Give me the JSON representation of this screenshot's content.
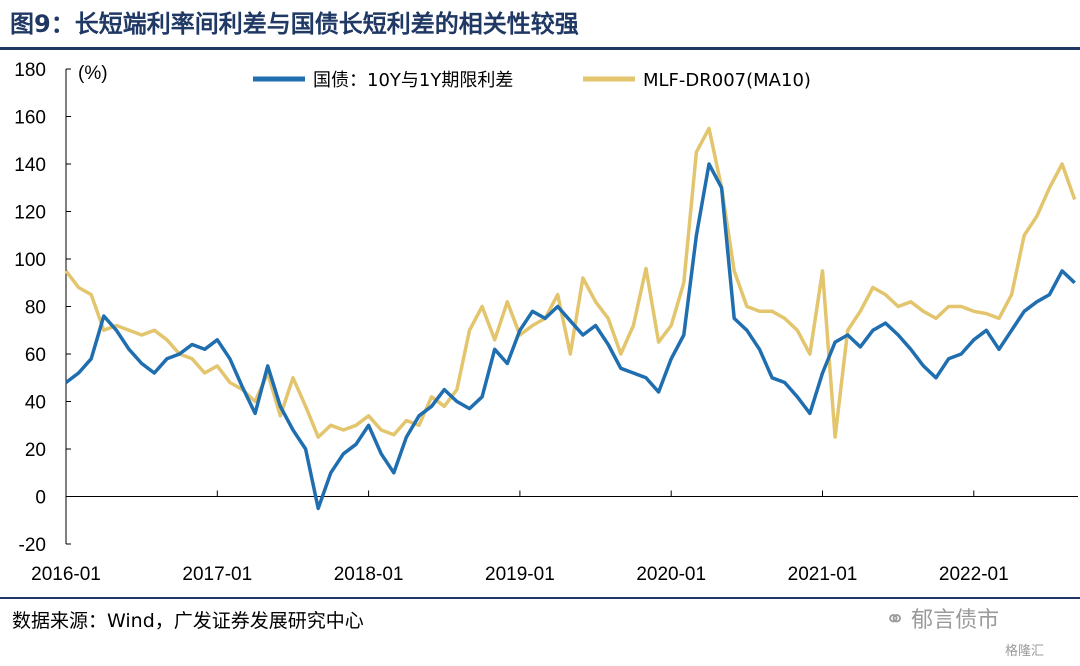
{
  "header": {
    "title": "图9：长短端利率间利差与国债长短利差的相关性较强"
  },
  "footer": {
    "source": "数据来源：Wind，广发证券发展研究中心",
    "watermark": "郁言债市",
    "brand": "格隆汇"
  },
  "chart_data": {
    "type": "line",
    "title": "",
    "xlabel": "",
    "ylabel": "(%)",
    "ylim": [
      -20,
      180
    ],
    "yticks": [
      -20,
      0,
      20,
      40,
      60,
      80,
      100,
      120,
      140,
      160,
      180
    ],
    "xlim": [
      "2016-01",
      "2022-09"
    ],
    "xticks": [
      "2016-01",
      "2017-01",
      "2018-01",
      "2019-01",
      "2020-01",
      "2021-01",
      "2022-01"
    ],
    "legend_position": "top",
    "grid": false,
    "colors": {
      "series1": "#1f6eb0",
      "series2": "#e3c56e",
      "text": "#000000",
      "title": "#1f3864"
    },
    "series": [
      {
        "name": "国债：10Y与1Y期限利差",
        "x": [
          "2016-01",
          "2016-02",
          "2016-03",
          "2016-04",
          "2016-05",
          "2016-06",
          "2016-07",
          "2016-08",
          "2016-09",
          "2016-10",
          "2016-11",
          "2016-12",
          "2017-01",
          "2017-02",
          "2017-03",
          "2017-04",
          "2017-05",
          "2017-06",
          "2017-07",
          "2017-08",
          "2017-09",
          "2017-10",
          "2017-11",
          "2017-12",
          "2018-01",
          "2018-02",
          "2018-03",
          "2018-04",
          "2018-05",
          "2018-06",
          "2018-07",
          "2018-08",
          "2018-09",
          "2018-10",
          "2018-11",
          "2018-12",
          "2019-01",
          "2019-02",
          "2019-03",
          "2019-04",
          "2019-05",
          "2019-06",
          "2019-07",
          "2019-08",
          "2019-09",
          "2019-10",
          "2019-11",
          "2019-12",
          "2020-01",
          "2020-02",
          "2020-03",
          "2020-04",
          "2020-05",
          "2020-06",
          "2020-07",
          "2020-08",
          "2020-09",
          "2020-10",
          "2020-11",
          "2020-12",
          "2021-01",
          "2021-02",
          "2021-03",
          "2021-04",
          "2021-05",
          "2021-06",
          "2021-07",
          "2021-08",
          "2021-09",
          "2021-10",
          "2021-11",
          "2021-12",
          "2022-01",
          "2022-02",
          "2022-03",
          "2022-04",
          "2022-05",
          "2022-06",
          "2022-07",
          "2022-08",
          "2022-09"
        ],
        "values": [
          48,
          52,
          58,
          76,
          70,
          62,
          56,
          52,
          58,
          60,
          64,
          62,
          66,
          58,
          46,
          35,
          55,
          38,
          28,
          20,
          -5,
          10,
          18,
          22,
          30,
          18,
          10,
          25,
          34,
          38,
          45,
          40,
          37,
          42,
          62,
          56,
          70,
          78,
          75,
          80,
          74,
          68,
          72,
          64,
          54,
          52,
          50,
          44,
          58,
          68,
          110,
          140,
          130,
          75,
          70,
          62,
          50,
          48,
          42,
          35,
          52,
          65,
          68,
          63,
          70,
          73,
          68,
          62,
          55,
          50,
          58,
          60,
          66,
          70,
          62,
          70,
          78,
          82,
          85,
          95,
          90
        ]
      },
      {
        "name": "MLF-DR007(MA10)",
        "x": [
          "2016-01",
          "2016-02",
          "2016-03",
          "2016-04",
          "2016-05",
          "2016-06",
          "2016-07",
          "2016-08",
          "2016-09",
          "2016-10",
          "2016-11",
          "2016-12",
          "2017-01",
          "2017-02",
          "2017-03",
          "2017-04",
          "2017-05",
          "2017-06",
          "2017-07",
          "2017-08",
          "2017-09",
          "2017-10",
          "2017-11",
          "2017-12",
          "2018-01",
          "2018-02",
          "2018-03",
          "2018-04",
          "2018-05",
          "2018-06",
          "2018-07",
          "2018-08",
          "2018-09",
          "2018-10",
          "2018-11",
          "2018-12",
          "2019-01",
          "2019-02",
          "2019-03",
          "2019-04",
          "2019-05",
          "2019-06",
          "2019-07",
          "2019-08",
          "2019-09",
          "2019-10",
          "2019-11",
          "2019-12",
          "2020-01",
          "2020-02",
          "2020-03",
          "2020-04",
          "2020-05",
          "2020-06",
          "2020-07",
          "2020-08",
          "2020-09",
          "2020-10",
          "2020-11",
          "2020-12",
          "2021-01",
          "2021-02",
          "2021-03",
          "2021-04",
          "2021-05",
          "2021-06",
          "2021-07",
          "2021-08",
          "2021-09",
          "2021-10",
          "2021-11",
          "2021-12",
          "2022-01",
          "2022-02",
          "2022-03",
          "2022-04",
          "2022-05",
          "2022-06",
          "2022-07",
          "2022-08",
          "2022-09"
        ],
        "values": [
          95,
          88,
          85,
          70,
          72,
          70,
          68,
          70,
          66,
          60,
          58,
          52,
          55,
          48,
          45,
          40,
          52,
          34,
          50,
          38,
          25,
          30,
          28,
          30,
          34,
          28,
          26,
          32,
          30,
          42,
          38,
          45,
          70,
          80,
          66,
          82,
          68,
          72,
          75,
          85,
          60,
          92,
          82,
          75,
          60,
          72,
          96,
          65,
          72,
          90,
          145,
          155,
          130,
          95,
          80,
          78,
          78,
          75,
          70,
          60,
          95,
          25,
          70,
          78,
          88,
          85,
          80,
          82,
          78,
          75,
          80,
          80,
          78,
          77,
          75,
          85,
          110,
          118,
          130,
          140,
          125
        ]
      }
    ]
  }
}
